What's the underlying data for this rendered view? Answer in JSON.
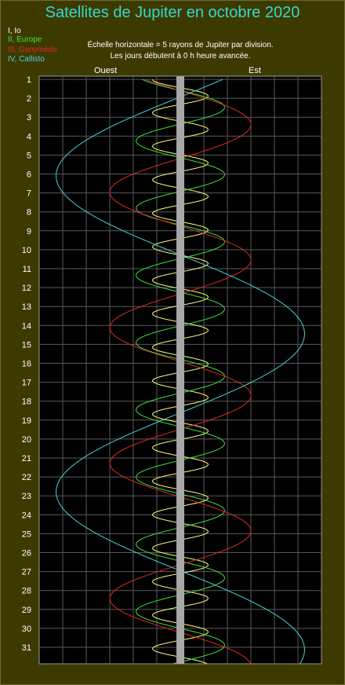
{
  "chart_data": {
    "type": "line",
    "title": "Satellites de Jupiter en octobre 2020",
    "subtitle_lines": [
      "Échelle horizontale = 5 rayons de Jupiter par division.",
      "Les jours débutent à 0 h heure avancée."
    ],
    "west_label": "Ouest",
    "east_label": "Est",
    "y_tick_labels": [
      "1",
      "2",
      "3",
      "4",
      "5",
      "6",
      "7",
      "8",
      "9",
      "10",
      "11",
      "12",
      "13",
      "14",
      "15",
      "16",
      "17",
      "18",
      "19",
      "20",
      "21",
      "22",
      "23",
      "24",
      "25",
      "26",
      "27",
      "28",
      "29",
      "30",
      "31"
    ],
    "ylim": [
      1,
      32
    ],
    "xlim": [
      -30,
      30
    ],
    "grid": true,
    "legend_placement": "top-left",
    "planet_color": "#a8a8a8",
    "series": [
      {
        "name": "I, Io",
        "color": "#ffff80",
        "amplitude": 5.9,
        "period_days": 1.769,
        "phase_day": 1.0,
        "phase_deg": 270
      },
      {
        "name": "II, Europe",
        "color": "#40e040",
        "amplitude": 9.4,
        "period_days": 3.551,
        "phase_day": 1.0,
        "phase_deg": 300
      },
      {
        "name": "III, Ganymède",
        "color": "#e02828",
        "amplitude": 15.0,
        "period_days": 7.155,
        "phase_day": 1.0,
        "phase_deg": 330
      },
      {
        "name": "IV, Callisto",
        "color": "#4ad0d8",
        "amplitude": 26.4,
        "period_days": 16.689,
        "phase_day": 1.0,
        "phase_deg": 160
      }
    ]
  }
}
